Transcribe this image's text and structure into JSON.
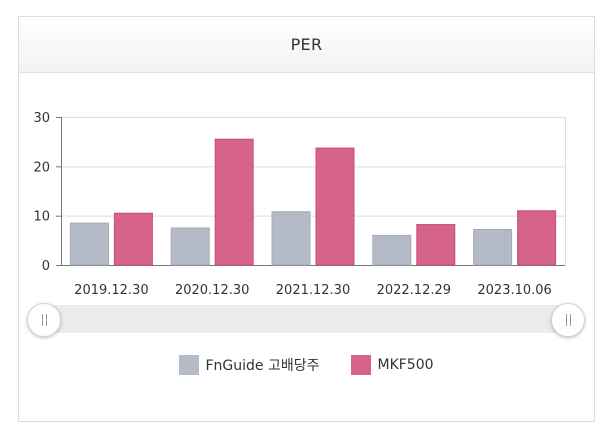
{
  "title": "PER",
  "colors": {
    "series1_fill": "#b4bac6",
    "series1_stroke": "#a3aab7",
    "series2_fill": "#d5638a",
    "series2_stroke": "#c94f79",
    "grid": "#dddddd",
    "axis": "#777777",
    "text": "#333333"
  },
  "chart_data": {
    "type": "bar",
    "title": "PER",
    "categories": [
      "2019.12.30",
      "2020.12.30",
      "2021.12.30",
      "2022.12.29",
      "2023.10.06"
    ],
    "series": [
      {
        "name": "FnGuide 고배당주",
        "values": [
          8.5,
          7.5,
          10.8,
          6.0,
          7.2
        ]
      },
      {
        "name": "MKF500",
        "values": [
          10.5,
          25.5,
          23.7,
          8.2,
          11.0
        ]
      }
    ],
    "yticks": [
      "0",
      "10",
      "20",
      "30"
    ],
    "ylim": [
      0,
      30
    ],
    "grid": true,
    "legend": "bottom"
  },
  "slider": {
    "range_start": 0,
    "range_end": 1
  },
  "legend": {
    "series1": "FnGuide 고배당주",
    "series2": "MKF500"
  }
}
